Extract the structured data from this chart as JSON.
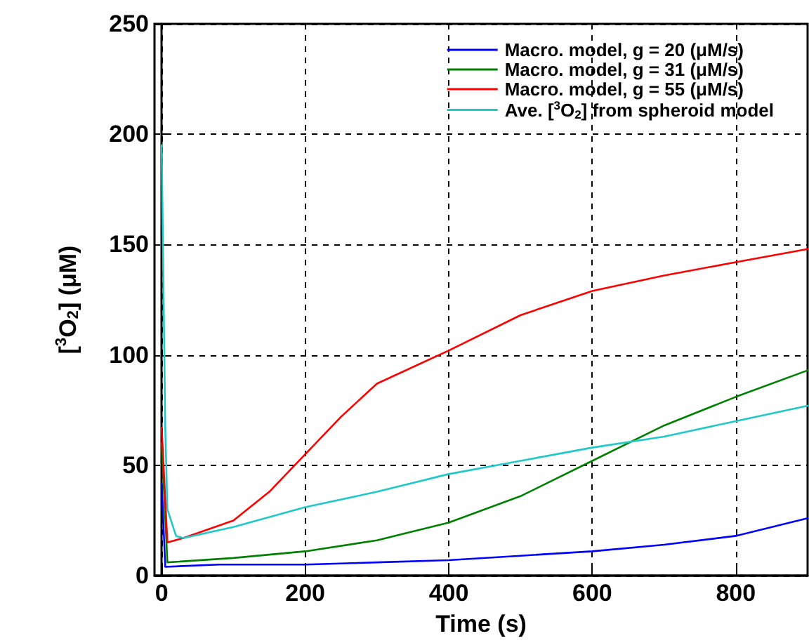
{
  "chart_data": {
    "type": "line",
    "xlabel": "Time (s)",
    "ylabel": "[$^{3}$O$_{2}$] (μM)",
    "xlim": [
      -10,
      900
    ],
    "xticks": [
      0,
      200,
      400,
      600,
      800
    ],
    "ylim": [
      0,
      250
    ],
    "yticks": [
      0,
      50,
      100,
      150,
      200,
      250
    ],
    "grid": true,
    "legend": "top right",
    "marker": "none",
    "line_style": "solid",
    "series": [
      {
        "name": "Macro. model, g = 20 (μM/s)",
        "color": "#0000ff",
        "x": [
          0,
          5,
          80,
          200,
          300,
          400,
          500,
          600,
          700,
          800,
          900
        ],
        "values": [
          42,
          4,
          5,
          5,
          6,
          7,
          9,
          11,
          14,
          18,
          26
        ]
      },
      {
        "name": "Macro. model, g = 31 (μM/s)",
        "color": "#008000",
        "x": [
          0,
          8,
          100,
          200,
          300,
          400,
          500,
          600,
          700,
          800,
          900
        ],
        "values": [
          60,
          6,
          8,
          11,
          16,
          24,
          36,
          52,
          68,
          81,
          93
        ]
      },
      {
        "name": "Macro. model, g = 55 (μM/s)",
        "color": "#ff0000",
        "x": [
          0,
          8,
          30,
          100,
          150,
          200,
          250,
          300,
          400,
          500,
          600,
          700,
          800,
          900
        ],
        "values": [
          67,
          15,
          17,
          25,
          38,
          55,
          72,
          87,
          102,
          118,
          129,
          136,
          142,
          148
        ]
      },
      {
        "name": "Ave. [$^{3}$O$_{2}$] from spheroid model",
        "color": "#20c8c8",
        "x": [
          0,
          5,
          8,
          20,
          30,
          100,
          200,
          300,
          400,
          500,
          600,
          700,
          800,
          900
        ],
        "values": [
          195,
          67,
          30,
          18,
          17,
          22,
          31,
          38,
          46,
          52,
          58,
          63,
          70,
          77
        ]
      }
    ]
  }
}
